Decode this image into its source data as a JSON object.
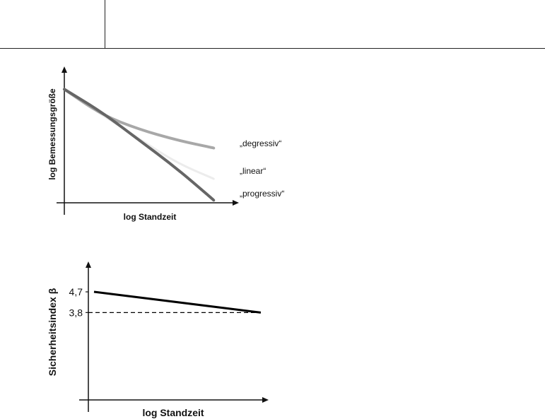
{
  "chart_data": [
    {
      "type": "line",
      "title": "",
      "xlabel": "log Standzeit",
      "ylabel": "log Bemessungsgröße",
      "x": [
        0,
        0.25,
        0.5,
        0.75,
        1.0
      ],
      "ylim": [
        0,
        1
      ],
      "xlim": [
        0,
        1.15
      ],
      "grid": false,
      "legend": "inline labels at line ends",
      "series": [
        {
          "name": "„degressiv“",
          "color": "#a8a8a8",
          "values": [
            0.85,
            0.66,
            0.55,
            0.47,
            0.41
          ]
        },
        {
          "name": "„linear“",
          "color": "#ececec",
          "values": [
            0.85,
            0.66,
            0.48,
            0.3,
            0.18
          ]
        },
        {
          "name": "„progressiv“",
          "color": "#666666",
          "values": [
            0.85,
            0.68,
            0.47,
            0.26,
            0.02
          ]
        }
      ]
    },
    {
      "type": "line",
      "title": "",
      "xlabel": "log Standzeit",
      "ylabel": "Sicherheitsindex β",
      "x": [
        0,
        1
      ],
      "ylim": [
        0,
        5.9
      ],
      "xlim": [
        0,
        1.03
      ],
      "grid": false,
      "yticks": [
        {
          "value": 3.8,
          "label": "3,8"
        },
        {
          "value": 4.7,
          "label": "4,7"
        }
      ],
      "series": [
        {
          "name": "",
          "color": "#000000",
          "style": "solid",
          "values": [
            4.7,
            3.8
          ]
        },
        {
          "name": "",
          "color": "#000000",
          "style": "dashed",
          "values": [
            3.8,
            3.8
          ]
        }
      ]
    }
  ]
}
